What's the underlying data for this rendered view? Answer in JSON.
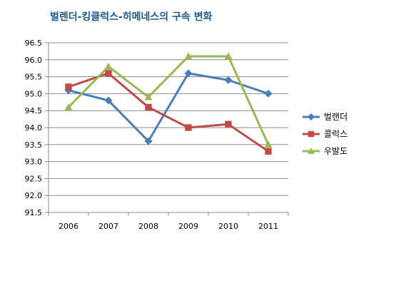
{
  "chart_data": {
    "type": "line",
    "title": "벌렌더-킹클럭스-히메네스의 구속 변화",
    "xlabel": "",
    "ylabel": "",
    "categories": [
      "2006",
      "2007",
      "2008",
      "2009",
      "2010",
      "2011"
    ],
    "ylim": [
      91.5,
      96.5
    ],
    "yticks": [
      "91.5",
      "92.0",
      "92.5",
      "93.0",
      "93.5",
      "94.0",
      "94.5",
      "95.0",
      "95.5",
      "96.0",
      "96.5"
    ],
    "grid": true,
    "legend_position": "right",
    "series": [
      {
        "name": "벌랜더",
        "values": [
          95.1,
          94.8,
          93.6,
          95.6,
          95.4,
          95.0
        ],
        "color": "#4a7ebb",
        "marker": "diamond"
      },
      {
        "name": "콜럭스",
        "values": [
          95.2,
          95.6,
          94.6,
          94.0,
          94.1,
          93.3
        ],
        "color": "#be4b48",
        "marker": "square"
      },
      {
        "name": "우발도",
        "values": [
          94.6,
          95.8,
          94.9,
          96.1,
          96.1,
          93.5
        ],
        "color": "#98b954",
        "marker": "triangle"
      }
    ]
  }
}
